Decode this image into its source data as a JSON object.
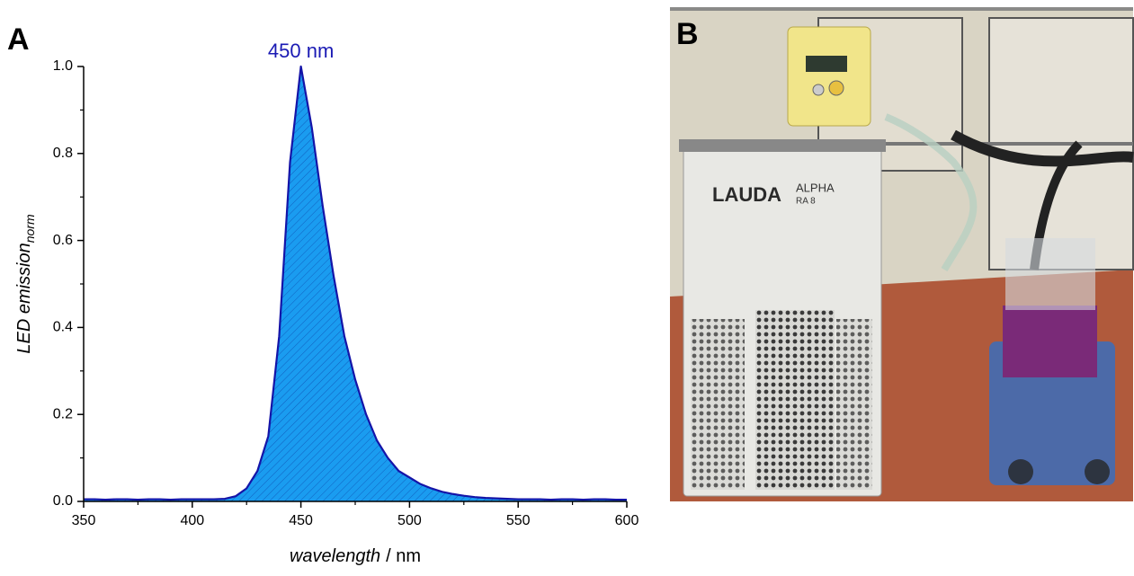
{
  "chart_data": {
    "type": "area",
    "panel_labels": [
      "A",
      "B"
    ],
    "x_label": "wavelength",
    "x_label_unit": "/ nm",
    "y_label": "LED emission",
    "y_label_subscript": "norm",
    "annotation": "450 nm",
    "annotation_color": "#1a1ab4",
    "x": [
      350,
      355,
      360,
      365,
      370,
      375,
      380,
      385,
      390,
      395,
      400,
      405,
      410,
      415,
      420,
      425,
      430,
      435,
      440,
      445,
      450,
      455,
      460,
      465,
      470,
      475,
      480,
      485,
      490,
      495,
      500,
      505,
      510,
      515,
      520,
      525,
      530,
      535,
      540,
      545,
      550,
      555,
      560,
      565,
      570,
      575,
      580,
      585,
      590,
      595,
      600
    ],
    "series": [
      {
        "name": "LED emission",
        "color": "#1a9cf0",
        "line_color": "#1414a8",
        "values": [
          0.005,
          0.005,
          0.004,
          0.005,
          0.005,
          0.004,
          0.005,
          0.005,
          0.004,
          0.005,
          0.005,
          0.005,
          0.005,
          0.006,
          0.012,
          0.03,
          0.07,
          0.15,
          0.38,
          0.78,
          1.0,
          0.86,
          0.68,
          0.52,
          0.38,
          0.28,
          0.2,
          0.14,
          0.1,
          0.07,
          0.055,
          0.04,
          0.03,
          0.022,
          0.017,
          0.013,
          0.01,
          0.008,
          0.007,
          0.006,
          0.005,
          0.005,
          0.005,
          0.004,
          0.005,
          0.005,
          0.004,
          0.005,
          0.005,
          0.004,
          0.004
        ]
      }
    ],
    "xlim": [
      350,
      600
    ],
    "xticks": [
      350,
      400,
      450,
      500,
      550,
      600
    ],
    "ylim": [
      0,
      1
    ],
    "yticks": [
      {
        "value": 0,
        "label": "0.0"
      },
      0.2,
      0.4,
      0.6,
      0.8,
      {
        "value": 1,
        "label": "1.0"
      }
    ],
    "photo": {
      "texts": [
        "LAUDA",
        "ALPHA",
        "RA 8"
      ]
    }
  }
}
